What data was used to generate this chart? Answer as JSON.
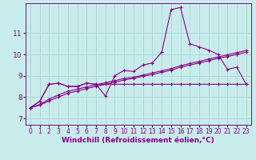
{
  "xlabel": "Windchill (Refroidissement éolien,°C)",
  "background_color": "#c8ecec",
  "grid_color": "#b0d8d8",
  "line_color": "#880088",
  "xlim": [
    -0.5,
    23.5
  ],
  "ylim": [
    6.7,
    12.4
  ],
  "xticks": [
    0,
    1,
    2,
    3,
    4,
    5,
    6,
    7,
    8,
    9,
    10,
    11,
    12,
    13,
    14,
    15,
    16,
    17,
    18,
    19,
    20,
    21,
    22,
    23
  ],
  "yticks": [
    7,
    8,
    9,
    10,
    11
  ],
  "series_main": [
    7.5,
    7.8,
    8.6,
    8.65,
    8.5,
    8.5,
    8.65,
    8.6,
    8.05,
    9.0,
    9.25,
    9.2,
    9.5,
    9.6,
    10.1,
    12.1,
    12.2,
    10.5,
    10.35,
    10.2,
    10.0,
    9.3,
    9.4,
    8.6
  ],
  "series_flat": [
    7.5,
    7.8,
    8.6,
    8.65,
    8.5,
    8.5,
    8.65,
    8.6,
    8.6,
    8.6,
    8.6,
    8.6,
    8.6,
    8.6,
    8.6,
    8.6,
    8.6,
    8.6,
    8.6,
    8.6,
    8.6,
    8.6,
    8.6,
    8.6
  ],
  "series_diag1": [
    7.5,
    7.62,
    7.82,
    8.0,
    8.18,
    8.28,
    8.4,
    8.5,
    8.6,
    8.7,
    8.8,
    8.88,
    8.97,
    9.06,
    9.16,
    9.26,
    9.4,
    9.5,
    9.6,
    9.7,
    9.82,
    9.9,
    10.0,
    10.1
  ],
  "series_diag2": [
    7.5,
    7.65,
    7.9,
    8.1,
    8.27,
    8.37,
    8.48,
    8.57,
    8.67,
    8.77,
    8.87,
    8.93,
    9.03,
    9.13,
    9.23,
    9.33,
    9.47,
    9.57,
    9.67,
    9.78,
    9.88,
    9.98,
    10.08,
    10.18
  ]
}
